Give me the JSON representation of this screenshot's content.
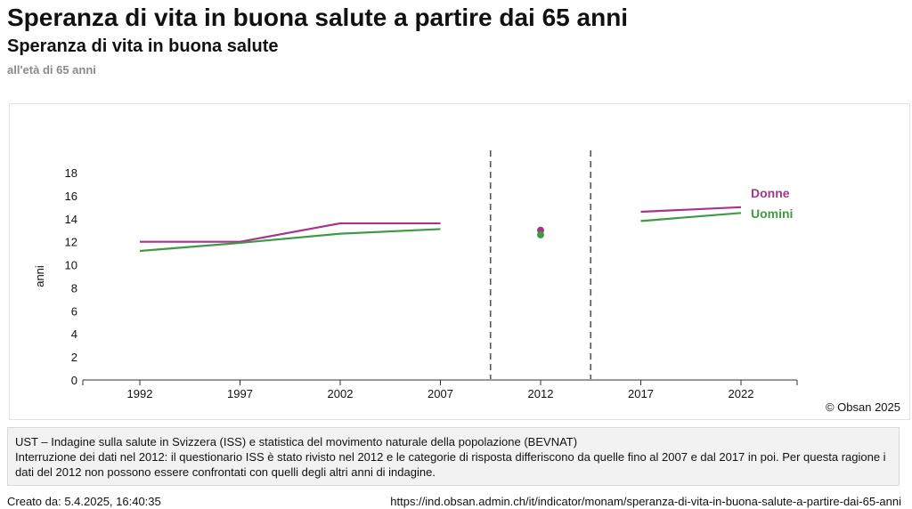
{
  "header": {
    "title": "Speranza di vita in buona salute a partire dai 65 anni",
    "subtitle": "Speranza di vita in buona salute",
    "unit_note": "all'età di 65 anni"
  },
  "chart_data": {
    "type": "line",
    "x_ticks": [
      "1992",
      "1997",
      "2002",
      "2007",
      "2012",
      "2017",
      "2022"
    ],
    "ylabel": "anni",
    "ylim": [
      0,
      18
    ],
    "y_ticks": [
      0,
      2,
      4,
      6,
      8,
      10,
      12,
      14,
      16,
      18
    ],
    "grid": false,
    "legend": "inline labels at right end of lines",
    "breaks": [
      "between 2007 and 2012",
      "between 2012 and 2017"
    ],
    "series": [
      {
        "name": "Donne",
        "color": "#a3358c",
        "segments": [
          {
            "x": [
              1992,
              1997,
              2002,
              2007
            ],
            "y": [
              12.0,
              12.0,
              13.6,
              13.6
            ]
          },
          {
            "x": [
              2012
            ],
            "y": [
              13.0
            ]
          },
          {
            "x": [
              2017,
              2022
            ],
            "y": [
              14.6,
              15.0
            ]
          }
        ]
      },
      {
        "name": "Uomini",
        "color": "#3f9a45",
        "segments": [
          {
            "x": [
              1992,
              1997,
              2002,
              2007
            ],
            "y": [
              11.2,
              11.9,
              12.7,
              13.1
            ]
          },
          {
            "x": [
              2012
            ],
            "y": [
              12.6
            ]
          },
          {
            "x": [
              2017,
              2022
            ],
            "y": [
              13.8,
              14.5
            ]
          }
        ]
      }
    ]
  },
  "copyright": "© Obsan 2025",
  "source": {
    "line1": "UST – Indagine sulla salute in Svizzera (ISS) e statistica del movimento naturale della popolazione (BEVNAT)",
    "line2": "Interruzione dei dati nel 2012: il questionario ISS è stato rivisto nel 2012 e le categorie di risposta differiscono da quelle fino al 2007 e dal 2017 in poi. Per questa ragione i dati del 2012 non possono essere confrontati con quelli degli altri anni di indagine."
  },
  "footer": {
    "created": "Creato da: 5.4.2025, 16:40:35",
    "url": "https://ind.obsan.admin.ch/it/indicator/monam/speranza-di-vita-in-buona-salute-a-partire-dai-65-anni"
  }
}
